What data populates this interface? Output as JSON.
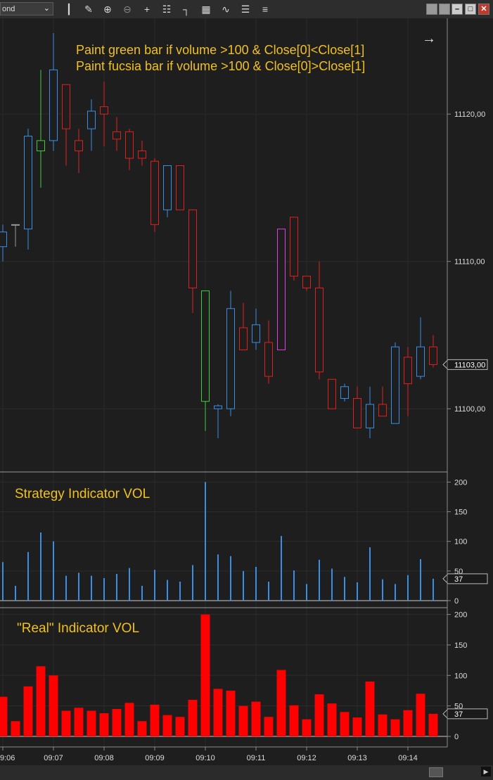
{
  "toolbar": {
    "period_value": "ond",
    "tools": [
      "candlestick-icon",
      "pencil-icon",
      "zoom-in-icon",
      "zoom-out-icon",
      "crosshair-icon",
      "properties-icon",
      "bar-spacing-icon",
      "data-box-icon",
      "indicators-icon",
      "strategies-icon",
      "list-icon"
    ]
  },
  "chart_data": [
    {
      "type": "candlestick",
      "title": "",
      "annotations": [
        "Paint green bar if volume >100 & Close[0]<Close[1]",
        "Paint fucsia bar if volume >100 & Close[0]>Close[1]"
      ],
      "ylim": [
        11096,
        11126.5
      ],
      "y_ticks": [
        "11100,00",
        "11110,00",
        "11120,00"
      ],
      "y_tick_values": [
        11100,
        11110,
        11120
      ],
      "last_price_label": "11103,00",
      "last_price": 11103,
      "colors": {
        "up": "#3a8ee6",
        "down": "#e02020",
        "green": "#3ccf3c",
        "fucsia": "#e040e0"
      },
      "bars": [
        {
          "o": 11111.0,
          "h": 11112.5,
          "l": 11110.0,
          "c": 11112.0,
          "color": "up"
        },
        {
          "o": 11112.5,
          "h": 11112.5,
          "l": 11111.0,
          "c": 11112.5,
          "color": "doji"
        },
        {
          "o": 11112.2,
          "h": 11119.0,
          "l": 11110.8,
          "c": 11118.5,
          "color": "up"
        },
        {
          "o": 11117.5,
          "h": 11123.0,
          "l": 11115.0,
          "c": 11118.2,
          "color": "green"
        },
        {
          "o": 11118.2,
          "h": 11125.5,
          "l": 11117.5,
          "c": 11123.0,
          "color": "up"
        },
        {
          "o": 11122.0,
          "h": 11122.0,
          "l": 11116.5,
          "c": 11119.0,
          "color": "down"
        },
        {
          "o": 11118.2,
          "h": 11119.0,
          "l": 11116.0,
          "c": 11117.5,
          "color": "down"
        },
        {
          "o": 11119.0,
          "h": 11121.0,
          "l": 11117.5,
          "c": 11120.2,
          "color": "up"
        },
        {
          "o": 11120.5,
          "h": 11122.2,
          "l": 11117.8,
          "c": 11120.0,
          "color": "down"
        },
        {
          "o": 11118.8,
          "h": 11119.8,
          "l": 11117.5,
          "c": 11118.3,
          "color": "down"
        },
        {
          "o": 11118.8,
          "h": 11119.0,
          "l": 11116.2,
          "c": 11117.0,
          "color": "down"
        },
        {
          "o": 11117.5,
          "h": 11118.2,
          "l": 11116.5,
          "c": 11117.0,
          "color": "down"
        },
        {
          "o": 11116.8,
          "h": 11117.0,
          "l": 11112.0,
          "c": 11112.5,
          "color": "down"
        },
        {
          "o": 11113.5,
          "h": 11116.5,
          "l": 11113.0,
          "c": 11116.5,
          "color": "up"
        },
        {
          "o": 11116.5,
          "h": 11116.5,
          "l": 11113.5,
          "c": 11113.5,
          "color": "down"
        },
        {
          "o": 11113.5,
          "h": 11113.5,
          "l": 11106.5,
          "c": 11108.2,
          "color": "down"
        },
        {
          "o": 11108.0,
          "h": 11108.0,
          "l": 11098.5,
          "c": 11100.5,
          "color": "green"
        },
        {
          "o": 11100.0,
          "h": 11100.3,
          "l": 11098.0,
          "c": 11100.2,
          "color": "up"
        },
        {
          "o": 11100.0,
          "h": 11108.0,
          "l": 11099.5,
          "c": 11106.8,
          "color": "up"
        },
        {
          "o": 11105.5,
          "h": 11107.2,
          "l": 11104.0,
          "c": 11104.0,
          "color": "down"
        },
        {
          "o": 11104.5,
          "h": 11106.8,
          "l": 11104.0,
          "c": 11105.7,
          "color": "up"
        },
        {
          "o": 11104.5,
          "h": 11106.0,
          "l": 11101.7,
          "c": 11102.2,
          "color": "down"
        },
        {
          "o": 11104.0,
          "h": 11112.2,
          "l": 11104.0,
          "c": 11112.2,
          "color": "fucsia"
        },
        {
          "o": 11113.0,
          "h": 11113.0,
          "l": 11108.7,
          "c": 11109.0,
          "color": "down"
        },
        {
          "o": 11109.0,
          "h": 11109.0,
          "l": 11108.0,
          "c": 11108.2,
          "color": "down"
        },
        {
          "o": 11108.2,
          "h": 11110.0,
          "l": 11102.0,
          "c": 11102.5,
          "color": "down"
        },
        {
          "o": 11102.0,
          "h": 11102.0,
          "l": 11100.0,
          "c": 11100.0,
          "color": "down"
        },
        {
          "o": 11100.7,
          "h": 11101.7,
          "l": 11100.5,
          "c": 11101.5,
          "color": "up"
        },
        {
          "o": 11100.7,
          "h": 11101.5,
          "l": 11098.7,
          "c": 11098.7,
          "color": "down"
        },
        {
          "o": 11098.7,
          "h": 11101.5,
          "l": 11098.0,
          "c": 11100.3,
          "color": "up"
        },
        {
          "o": 11100.3,
          "h": 11101.5,
          "l": 11099.5,
          "c": 11099.5,
          "color": "down"
        },
        {
          "o": 11099.0,
          "h": 11104.5,
          "l": 11099.0,
          "c": 11104.2,
          "color": "up"
        },
        {
          "o": 11103.5,
          "h": 11104.2,
          "l": 11099.5,
          "c": 11101.7,
          "color": "down"
        },
        {
          "o": 11102.2,
          "h": 11106.2,
          "l": 11102.0,
          "c": 11104.2,
          "color": "up"
        },
        {
          "o": 11104.2,
          "h": 11105.0,
          "l": 11102.8,
          "c": 11103.0,
          "color": "down"
        }
      ]
    },
    {
      "type": "bar",
      "title": "Strategy Indicator VOL",
      "ylim": [
        0,
        210
      ],
      "y_ticks": [
        "0",
        "50",
        "100",
        "150",
        "200"
      ],
      "y_tick_values": [
        0,
        50,
        100,
        150,
        200
      ],
      "last_value_label": "37",
      "color": "#3a8ee6",
      "values": [
        65,
        25,
        82,
        115,
        100,
        42,
        47,
        42,
        38,
        45,
        55,
        25,
        52,
        35,
        32,
        60,
        200,
        78,
        75,
        50,
        57,
        32,
        109,
        51,
        28,
        69,
        54,
        40,
        31,
        90,
        36,
        28,
        43,
        70,
        37
      ]
    },
    {
      "type": "bar",
      "title": "\"Real\" Indicator VOL",
      "ylim": [
        0,
        203
      ],
      "y_ticks": [
        "0",
        "50",
        "100",
        "150",
        "200"
      ],
      "y_tick_values": [
        0,
        50,
        100,
        150,
        200
      ],
      "last_value_label": "37",
      "color": "#ff0000",
      "values": [
        65,
        25,
        82,
        115,
        100,
        42,
        47,
        42,
        38,
        45,
        55,
        25,
        52,
        35,
        32,
        60,
        200,
        78,
        75,
        50,
        57,
        32,
        109,
        51,
        28,
        69,
        54,
        40,
        31,
        90,
        36,
        28,
        43,
        70,
        37
      ]
    }
  ],
  "x_axis": {
    "labels": [
      "9:06",
      "09:07",
      "09:08",
      "09:09",
      "09:10",
      "09:11",
      "09:12",
      "09:13",
      "09:14"
    ],
    "label_bar_index": [
      0,
      4,
      8,
      12,
      16,
      20,
      24,
      28,
      32
    ]
  }
}
